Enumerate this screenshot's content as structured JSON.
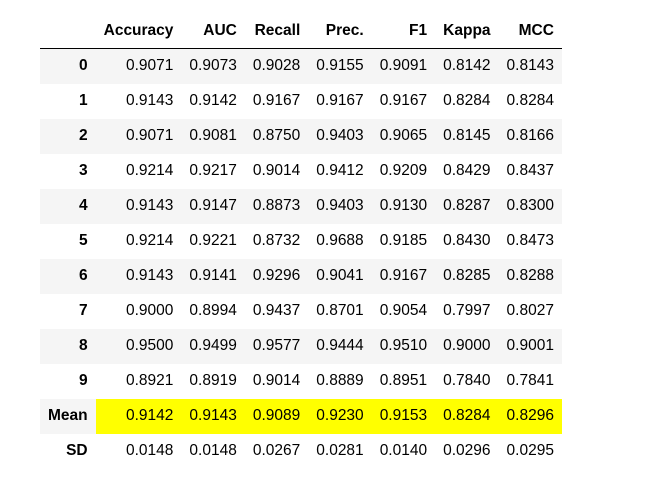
{
  "table": {
    "columns": [
      "",
      "Accuracy",
      "AUC",
      "Recall",
      "Prec.",
      "F1",
      "Kappa",
      "MCC"
    ],
    "rows": [
      {
        "label": "0",
        "values": [
          "0.9071",
          "0.9073",
          "0.9028",
          "0.9155",
          "0.9091",
          "0.8142",
          "0.8143"
        ]
      },
      {
        "label": "1",
        "values": [
          "0.9143",
          "0.9142",
          "0.9167",
          "0.9167",
          "0.9167",
          "0.8284",
          "0.8284"
        ]
      },
      {
        "label": "2",
        "values": [
          "0.9071",
          "0.9081",
          "0.8750",
          "0.9403",
          "0.9065",
          "0.8145",
          "0.8166"
        ]
      },
      {
        "label": "3",
        "values": [
          "0.9214",
          "0.9217",
          "0.9014",
          "0.9412",
          "0.9209",
          "0.8429",
          "0.8437"
        ]
      },
      {
        "label": "4",
        "values": [
          "0.9143",
          "0.9147",
          "0.8873",
          "0.9403",
          "0.9130",
          "0.8287",
          "0.8300"
        ]
      },
      {
        "label": "5",
        "values": [
          "0.9214",
          "0.9221",
          "0.8732",
          "0.9688",
          "0.9185",
          "0.8430",
          "0.8473"
        ]
      },
      {
        "label": "6",
        "values": [
          "0.9143",
          "0.9141",
          "0.9296",
          "0.9041",
          "0.9167",
          "0.8285",
          "0.8288"
        ]
      },
      {
        "label": "7",
        "values": [
          "0.9000",
          "0.8994",
          "0.9437",
          "0.8701",
          "0.9054",
          "0.7997",
          "0.8027"
        ]
      },
      {
        "label": "8",
        "values": [
          "0.9500",
          "0.9499",
          "0.9577",
          "0.9444",
          "0.9510",
          "0.9000",
          "0.9001"
        ]
      },
      {
        "label": "9",
        "values": [
          "0.8921",
          "0.8919",
          "0.9014",
          "0.8889",
          "0.8951",
          "0.7840",
          "0.7841"
        ]
      },
      {
        "label": "Mean",
        "values": [
          "0.9142",
          "0.9143",
          "0.9089",
          "0.9230",
          "0.9153",
          "0.8284",
          "0.8296"
        ]
      },
      {
        "label": "SD",
        "values": [
          "0.0148",
          "0.0148",
          "0.0267",
          "0.0281",
          "0.0140",
          "0.0296",
          "0.0295"
        ]
      }
    ],
    "highlight_row_label": "Mean",
    "colors": {
      "highlight": "#ffff00",
      "stripe": "#f5f5f5",
      "header_rule": "#000000"
    }
  }
}
